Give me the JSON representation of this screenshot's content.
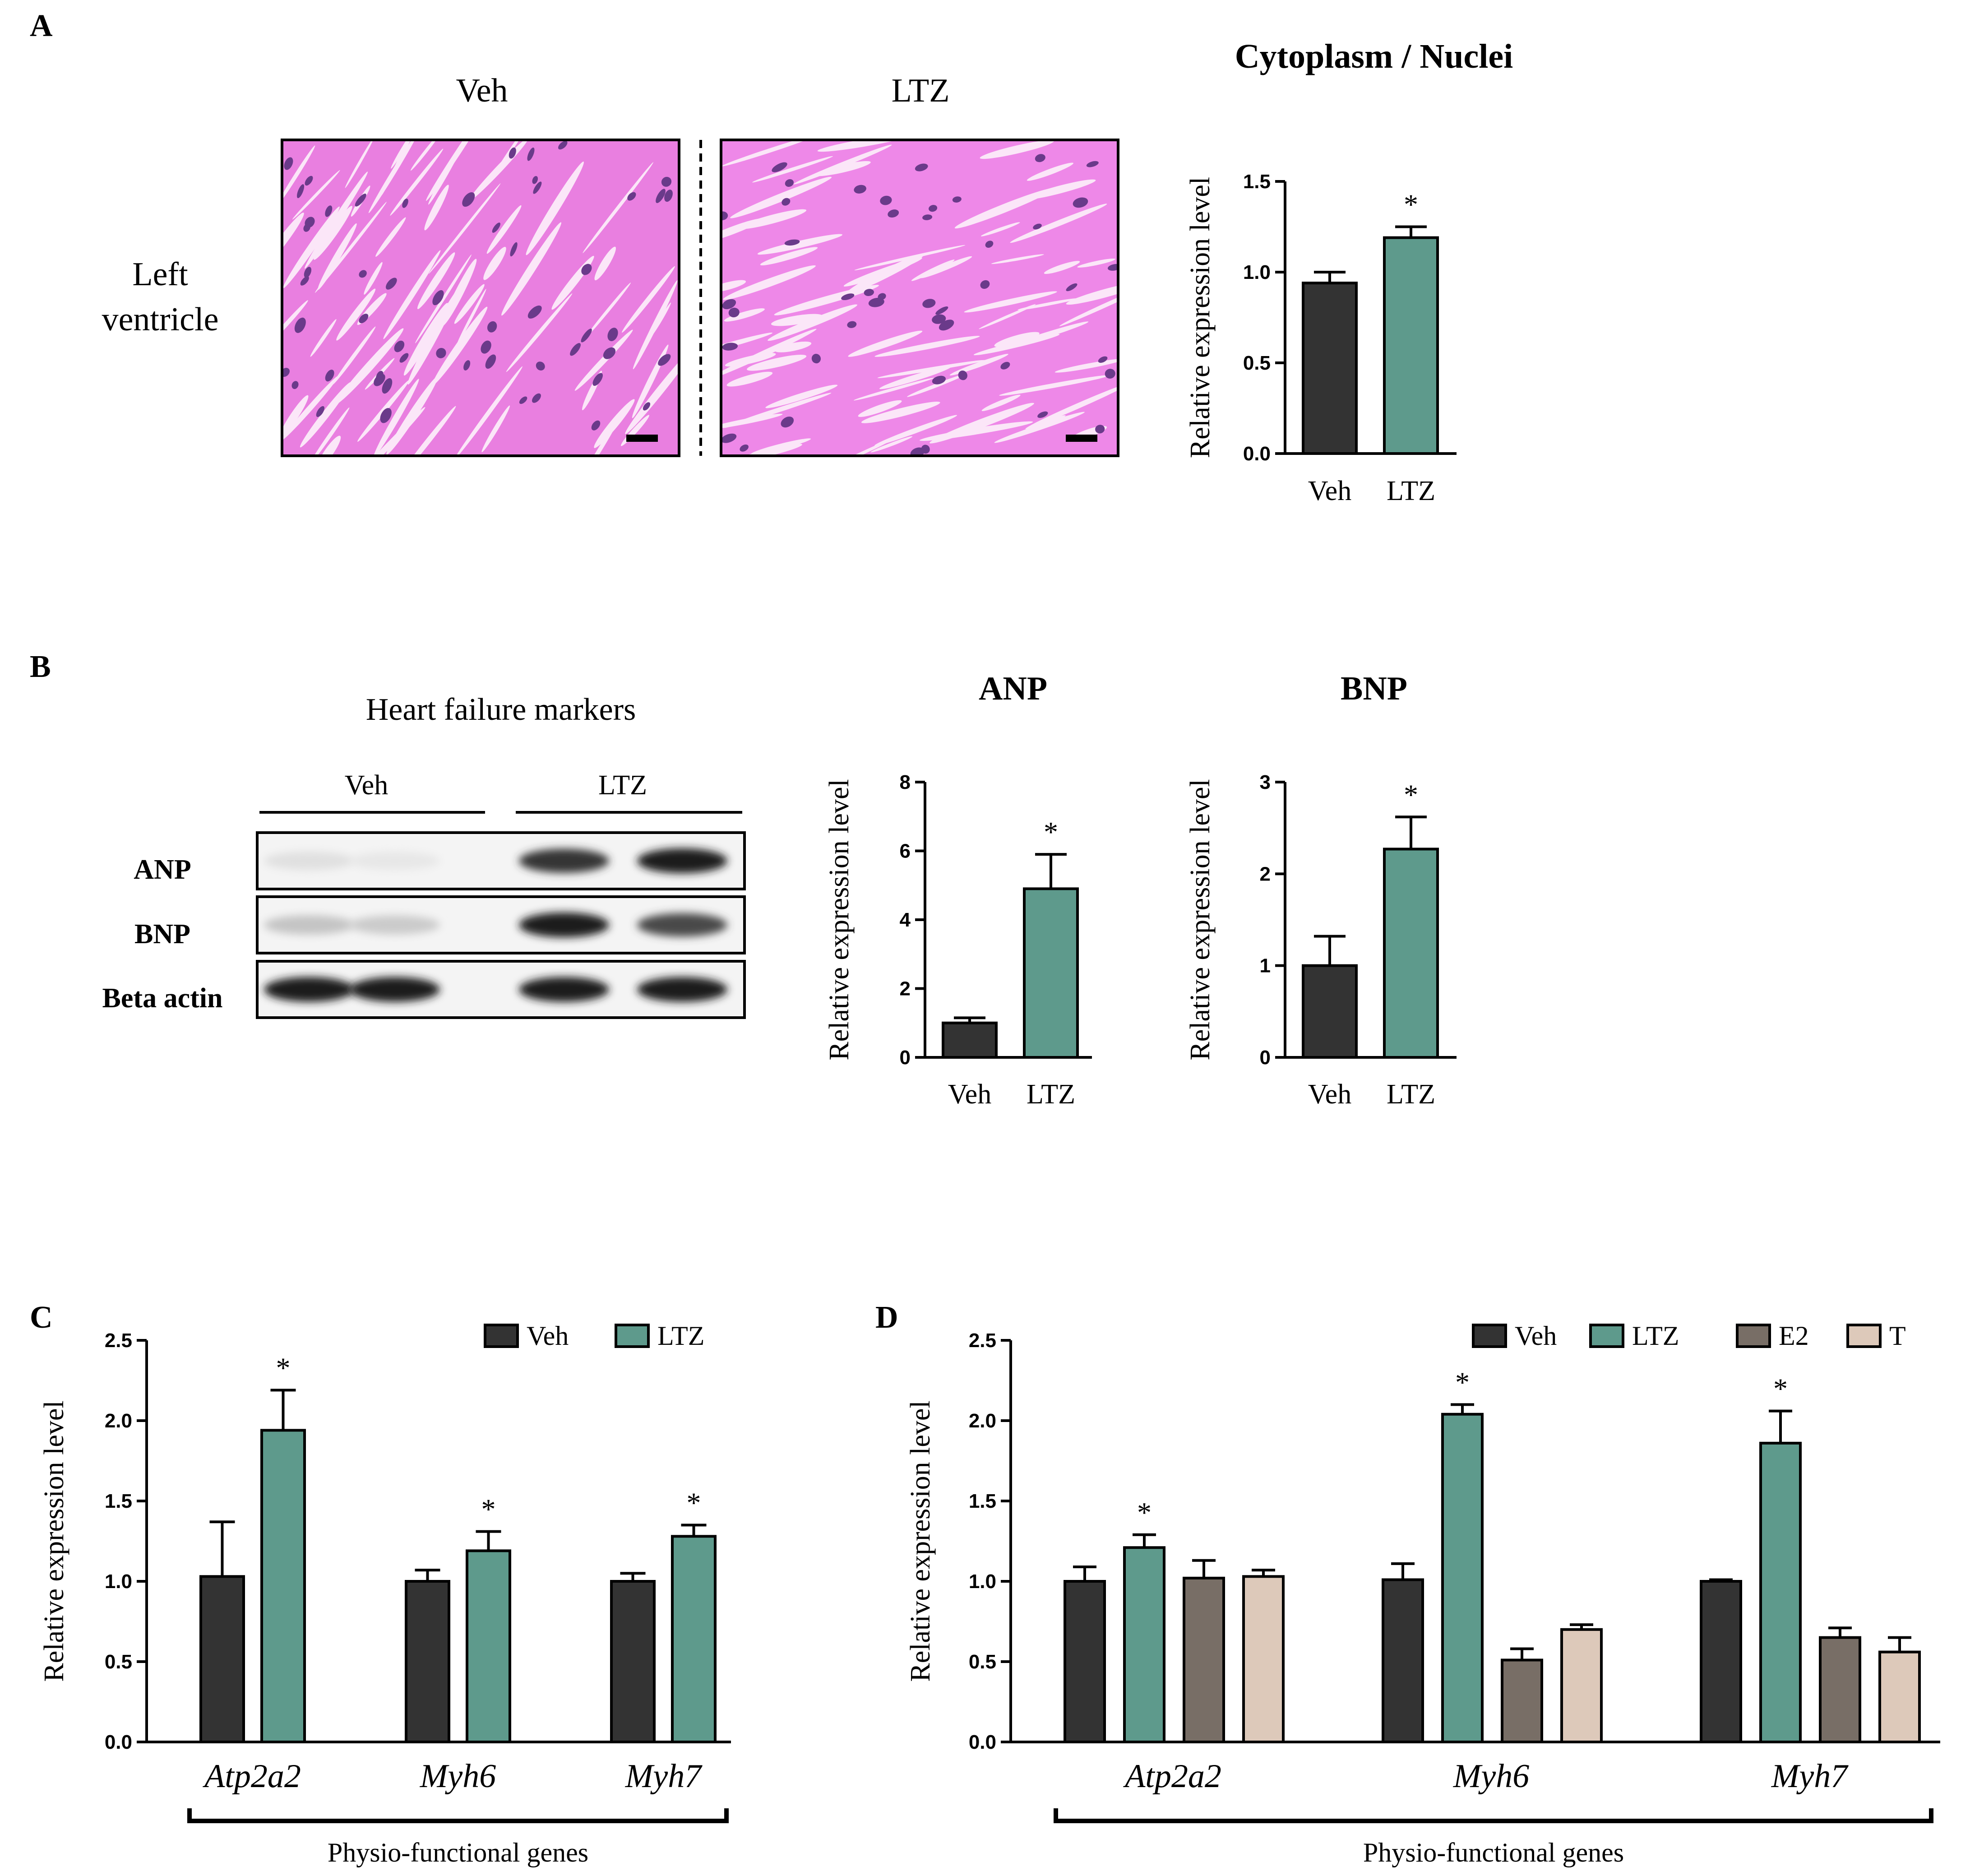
{
  "panels": {
    "A": {
      "letter": "A",
      "col_veh": "Veh",
      "col_ltz": "LTZ",
      "row_label_1": "Left",
      "row_label_2": "ventricle"
    },
    "B": {
      "letter": "B",
      "blot_title": "Heart failure markers",
      "group_veh": "Veh",
      "group_ltz": "LTZ",
      "rows": [
        "ANP",
        "BNP",
        "Beta actin"
      ],
      "band_intensity": {
        "ANP": [
          0.05,
          0.02,
          0.85,
          0.95
        ],
        "BNP": [
          0.18,
          0.15,
          0.95,
          0.75
        ],
        "Beta actin": [
          0.95,
          0.95,
          0.95,
          0.95
        ]
      }
    },
    "C": {
      "letter": "C"
    },
    "D": {
      "letter": "D"
    }
  },
  "colors": {
    "veh": "#333333",
    "ltz": "#5e9a8c",
    "e2": "#786e66",
    "t": "#ddc9ba",
    "he_pink": "#e97fe0",
    "he_nuclei": "#6a3a8a"
  },
  "chart_data": [
    {
      "id": "A",
      "type": "bar",
      "title": "Cytoplasm / Nuclei",
      "ylabel": "Relative expression level",
      "categories": [
        "Veh",
        "LTZ"
      ],
      "values": [
        0.94,
        1.19
      ],
      "errors": [
        0.06,
        0.06
      ],
      "significance": [
        "",
        "*"
      ],
      "ylim": [
        0,
        1.5
      ],
      "yticks": [
        "0.0",
        "0.5",
        "1.0",
        "1.5"
      ],
      "tick_values": [
        0,
        0.5,
        1.0,
        1.5
      ]
    },
    {
      "id": "B-ANP",
      "type": "bar",
      "title": "ANP",
      "ylabel": "Relative expression level",
      "categories": [
        "Veh",
        "LTZ"
      ],
      "values": [
        1.0,
        4.9
      ],
      "errors": [
        0.15,
        1.0
      ],
      "significance": [
        "",
        "*"
      ],
      "ylim": [
        0,
        8
      ],
      "yticks": [
        "0",
        "2",
        "4",
        "6",
        "8"
      ],
      "tick_values": [
        0,
        2,
        4,
        6,
        8
      ]
    },
    {
      "id": "B-BNP",
      "type": "bar",
      "title": "BNP",
      "ylabel": "Relative expression level",
      "categories": [
        "Veh",
        "LTZ"
      ],
      "values": [
        1.0,
        2.27
      ],
      "errors": [
        0.32,
        0.35
      ],
      "significance": [
        "",
        "*"
      ],
      "ylim": [
        0,
        3
      ],
      "yticks": [
        "0",
        "1",
        "2",
        "3"
      ],
      "tick_values": [
        0,
        1,
        2,
        3
      ]
    },
    {
      "id": "C",
      "type": "bar",
      "ylabel": "Relative expression level",
      "xlabel": "Physio-functional genes",
      "categories": [
        "Atp2a2",
        "Myh6",
        "Myh7"
      ],
      "series": [
        {
          "name": "Veh",
          "values": [
            1.03,
            1.0,
            1.0
          ],
          "errors": [
            0.34,
            0.07,
            0.05
          ],
          "significance": [
            "",
            "",
            ""
          ]
        },
        {
          "name": "LTZ",
          "values": [
            1.94,
            1.19,
            1.28
          ],
          "errors": [
            0.25,
            0.12,
            0.07
          ],
          "significance": [
            "*",
            "*",
            "*"
          ]
        }
      ],
      "ylim": [
        0,
        2.5
      ],
      "yticks": [
        "0.0",
        "0.5",
        "1.0",
        "1.5",
        "2.0",
        "2.5"
      ],
      "tick_values": [
        0,
        0.5,
        1.0,
        1.5,
        2.0,
        2.5
      ],
      "legend": "top-right"
    },
    {
      "id": "D",
      "type": "bar",
      "ylabel": "Relative expression level",
      "xlabel": "Physio-functional genes",
      "categories": [
        "Atp2a2",
        "Myh6",
        "Myh7"
      ],
      "series": [
        {
          "name": "Veh",
          "values": [
            1.0,
            1.01,
            1.0
          ],
          "errors": [
            0.09,
            0.1,
            0.01
          ],
          "significance": [
            "",
            "",
            ""
          ]
        },
        {
          "name": "LTZ",
          "values": [
            1.21,
            2.04,
            1.86
          ],
          "errors": [
            0.08,
            0.06,
            0.2
          ],
          "significance": [
            "*",
            "*",
            "*"
          ]
        },
        {
          "name": "E2",
          "values": [
            1.02,
            0.51,
            0.65
          ],
          "errors": [
            0.11,
            0.07,
            0.06
          ],
          "significance": [
            "",
            "",
            ""
          ]
        },
        {
          "name": "T",
          "values": [
            1.03,
            0.7,
            0.56
          ],
          "errors": [
            0.04,
            0.03,
            0.09
          ],
          "significance": [
            "",
            "",
            ""
          ]
        }
      ],
      "ylim": [
        0,
        2.5
      ],
      "yticks": [
        "0.0",
        "0.5",
        "1.0",
        "1.5",
        "2.0",
        "2.5"
      ],
      "tick_values": [
        0,
        0.5,
        1.0,
        1.5,
        2.0,
        2.5
      ],
      "legend": "top-right"
    }
  ]
}
